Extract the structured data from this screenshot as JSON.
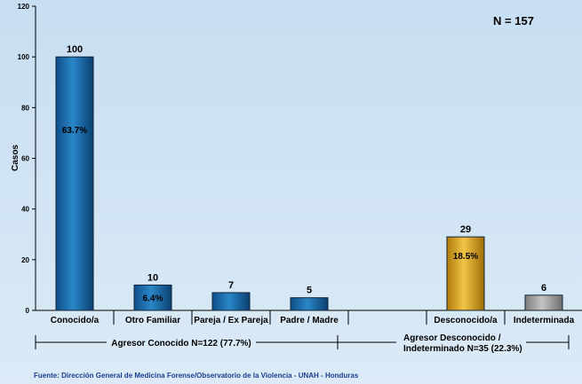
{
  "chart_data": {
    "type": "bar",
    "ylabel": "Casos",
    "ylim": [
      0,
      120
    ],
    "yticks": [
      0,
      20,
      40,
      60,
      80,
      100,
      120
    ],
    "annotation": "N = 157",
    "categories": [
      "Conocido/a",
      "Otro Familiar",
      "Pareja / Ex Pareja",
      "Padre / Madre",
      "",
      "Desconocido/a",
      "Indeterminada"
    ],
    "values": [
      100,
      10,
      7,
      5,
      null,
      29,
      6
    ],
    "value_labels": [
      "100",
      "10",
      "7",
      "5",
      "",
      "29",
      "6"
    ],
    "percent_labels": [
      "63.7%",
      "6.4%",
      "",
      "",
      "",
      "18.5%",
      ""
    ],
    "groups": [
      {
        "label": "Agresor Conocido N=122 (77.7%)"
      },
      {
        "label_line1": "Agresor Desconocido /",
        "label_line2": "Indeterminado N=35 (22.3%)"
      }
    ],
    "colors": {
      "known": "#1f6fb0",
      "unknown": "#e0a820",
      "undetermined": "#a8a8a8",
      "background": "#cfe3f3"
    },
    "grid": false
  },
  "source": "Fuente: Dirección General de Medicina Forense/Observatorio de la Violencia - UNAH - Honduras"
}
